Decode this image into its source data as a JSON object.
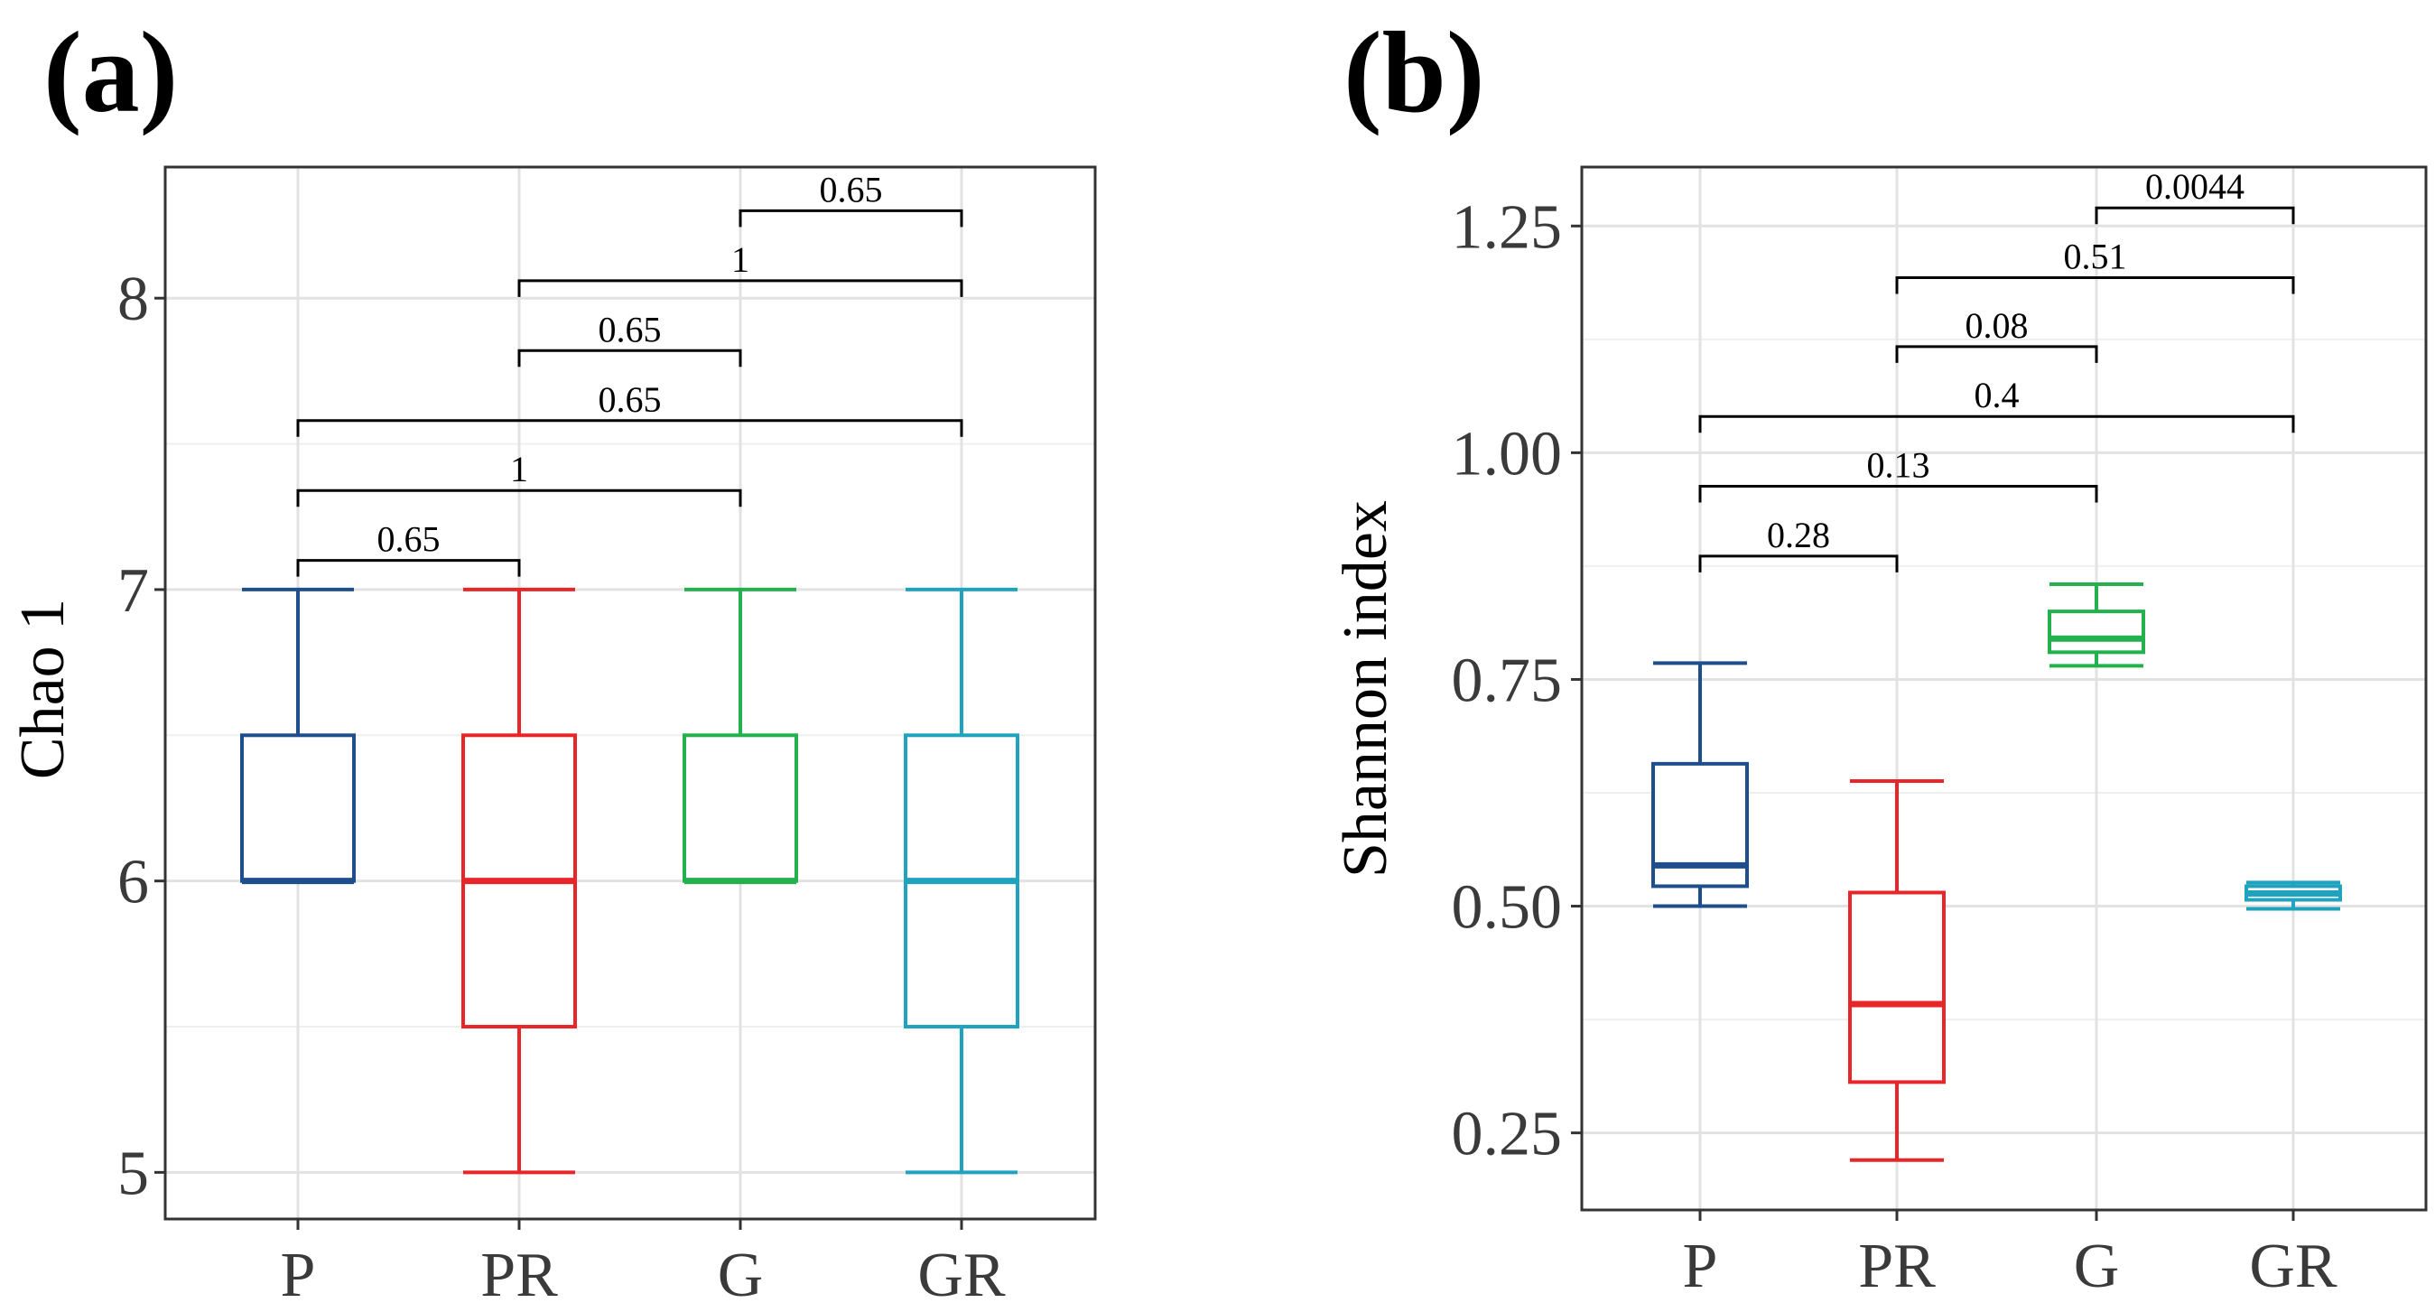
{
  "chart_data": [
    {
      "panel": "(a)",
      "type": "box",
      "ylabel": "Chao 1",
      "xlabel": "",
      "ylim": [
        4.84,
        8.45
      ],
      "yticks": [
        5,
        6,
        7,
        8
      ],
      "ytick_labels": [
        "5",
        "6",
        "7",
        "8"
      ],
      "grid": true,
      "categories": [
        "P",
        "PR",
        "G",
        "GR"
      ],
      "colors": [
        "#1f4e8c",
        "#e8262a",
        "#22b14c",
        "#1fa3bf"
      ],
      "boxes": [
        {
          "group": "P",
          "whisker_low": 6.0,
          "q1": 6.0,
          "median": 6.0,
          "q3": 6.5,
          "whisker_high": 7.0
        },
        {
          "group": "PR",
          "whisker_low": 5.0,
          "q1": 5.5,
          "median": 6.0,
          "q3": 6.5,
          "whisker_high": 7.0
        },
        {
          "group": "G",
          "whisker_low": 6.0,
          "q1": 6.0,
          "median": 6.0,
          "q3": 6.5,
          "whisker_high": 7.0
        },
        {
          "group": "GR",
          "whisker_low": 5.0,
          "q1": 5.5,
          "median": 6.0,
          "q3": 6.5,
          "whisker_high": 7.0
        }
      ],
      "comparisons": [
        {
          "from": "P",
          "to": "PR",
          "y": 7.1,
          "label": "0.65"
        },
        {
          "from": "P",
          "to": "G",
          "y": 7.34,
          "label": "1"
        },
        {
          "from": "P",
          "to": "GR",
          "y": 7.58,
          "label": "0.65"
        },
        {
          "from": "PR",
          "to": "G",
          "y": 7.82,
          "label": "0.65"
        },
        {
          "from": "PR",
          "to": "GR",
          "y": 8.06,
          "label": "1"
        },
        {
          "from": "G",
          "to": "GR",
          "y": 8.3,
          "label": "0.65"
        }
      ]
    },
    {
      "panel": "(b)",
      "type": "box",
      "ylabel": "Shannon index",
      "xlabel": "",
      "ylim": [
        0.165,
        1.315
      ],
      "yticks": [
        0.25,
        0.5,
        0.75,
        1.0,
        1.25
      ],
      "ytick_labels": [
        "0.25",
        "0.50",
        "0.75",
        "1.00",
        "1.25"
      ],
      "grid": true,
      "categories": [
        "P",
        "PR",
        "G",
        "GR"
      ],
      "colors": [
        "#1f4e8c",
        "#e8262a",
        "#22b14c",
        "#1fa3bf"
      ],
      "boxes": [
        {
          "group": "P",
          "whisker_low": 0.5,
          "q1": 0.522,
          "median": 0.545,
          "q3": 0.657,
          "whisker_high": 0.768
        },
        {
          "group": "PR",
          "whisker_low": 0.22,
          "q1": 0.306,
          "median": 0.392,
          "q3": 0.515,
          "whisker_high": 0.638
        },
        {
          "group": "G",
          "whisker_low": 0.765,
          "q1": 0.78,
          "median": 0.795,
          "q3": 0.825,
          "whisker_high": 0.855
        },
        {
          "group": "GR",
          "whisker_low": 0.497,
          "q1": 0.507,
          "median": 0.514,
          "q3": 0.522,
          "whisker_high": 0.526
        }
      ],
      "comparisons": [
        {
          "from": "P",
          "to": "PR",
          "y": 0.886,
          "label": "0.28"
        },
        {
          "from": "P",
          "to": "G",
          "y": 0.963,
          "label": "0.13"
        },
        {
          "from": "P",
          "to": "GR",
          "y": 1.04,
          "label": "0.4"
        },
        {
          "from": "PR",
          "to": "G",
          "y": 1.117,
          "label": "0.08"
        },
        {
          "from": "PR",
          "to": "GR",
          "y": 1.193,
          "label": "0.51"
        },
        {
          "from": "G",
          "to": "GR",
          "y": 1.27,
          "label": "0.0044"
        }
      ]
    }
  ]
}
